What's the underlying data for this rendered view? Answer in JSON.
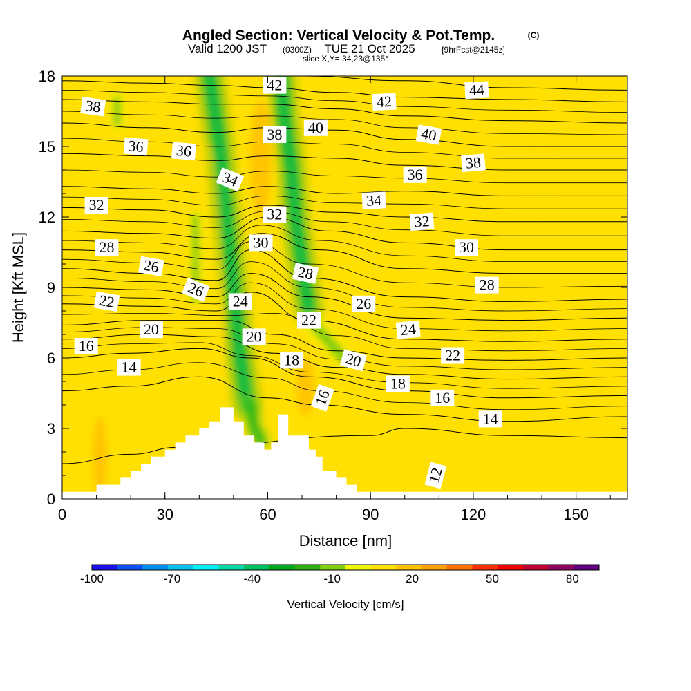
{
  "chart_data": {
    "type": "heatmap",
    "title": "Angled Section: Vertical Velocity & Pot.Temp.",
    "copyright_mark": "(C)",
    "subtitle_valid": "Valid 1200 JST",
    "subtitle_utc": "(0300Z)",
    "subtitle_date": "TUE 21 Oct 2025",
    "subtitle_fcst": "[9hrFcst@2145z]",
    "slice_label": "slice X,Y= 34,23@135°",
    "xlabel": "Distance [nm]",
    "ylabel": "Height [Kft MSL]",
    "xlim": [
      0,
      165
    ],
    "ylim": [
      0,
      18
    ],
    "x_ticks": [
      0,
      30,
      60,
      90,
      120,
      150
    ],
    "y_ticks": [
      0,
      3,
      6,
      9,
      12,
      15,
      18
    ],
    "colorbar": {
      "label": "Vertical Velocity [cm/s]",
      "range": [
        -100,
        90
      ],
      "step": 10,
      "tick_values": [
        -100,
        -70,
        -40,
        -10,
        20,
        50,
        80
      ],
      "colors": [
        "#1a10ee",
        "#0a50f5",
        "#0090f0",
        "#00c0f5",
        "#00f0f5",
        "#00d8a8",
        "#00c060",
        "#00a820",
        "#30b010",
        "#80d010",
        "#f0f800",
        "#ffe000",
        "#ffc000",
        "#ffa000",
        "#ff7000",
        "#ff3000",
        "#f00000",
        "#c00030",
        "#900060",
        "#600080"
      ]
    },
    "terrain_profile": {
      "x": [
        0,
        10,
        10,
        17,
        17,
        20,
        20,
        23,
        23,
        26,
        26,
        30,
        30,
        33,
        33,
        36,
        36,
        40,
        40,
        43,
        43,
        46,
        46,
        50,
        50,
        53,
        53,
        56,
        56,
        59,
        59,
        61,
        61,
        63,
        63,
        66,
        66,
        72,
        72,
        74,
        74,
        76,
        76,
        80,
        80,
        83,
        83,
        86,
        86,
        165
      ],
      "height_kft": [
        0.3,
        0.3,
        0.6,
        0.6,
        0.9,
        0.9,
        1.2,
        1.2,
        1.5,
        1.5,
        1.8,
        1.8,
        2.1,
        2.1,
        2.4,
        2.4,
        2.7,
        2.7,
        3.0,
        3.0,
        3.3,
        3.3,
        3.9,
        3.9,
        3.3,
        3.3,
        2.7,
        2.7,
        2.4,
        2.4,
        2.1,
        2.1,
        2.4,
        2.4,
        3.6,
        3.6,
        2.7,
        2.7,
        2.1,
        2.1,
        1.8,
        1.8,
        1.2,
        1.2,
        0.9,
        0.9,
        0.6,
        0.6,
        0.3,
        0.3
      ]
    },
    "updraft_cores": [
      {
        "x": 11,
        "y": 1.8,
        "w": 4,
        "h": 3.4,
        "value": 20
      },
      {
        "x": 25,
        "y": 5.5,
        "w": 6,
        "h": 9,
        "value": 15
      },
      {
        "x": 42,
        "y": 9,
        "w": 8,
        "h": 12,
        "value": 15
      },
      {
        "x": 58,
        "y": 14.5,
        "w": 6,
        "h": 5,
        "value": 20
      },
      {
        "x": 71,
        "y": 4.8,
        "w": 5,
        "h": 2.5,
        "value": 25
      },
      {
        "x": 100,
        "y": 1.8,
        "w": 14,
        "h": 1.5,
        "value": 15
      },
      {
        "x": 150,
        "y": 1.8,
        "w": 8,
        "h": 1.5,
        "value": 15
      },
      {
        "x": 140,
        "y": 14,
        "w": 10,
        "h": 4,
        "value": 12
      }
    ],
    "downdraft_cores": [
      {
        "path_x": [
          43,
          46,
          48,
          50,
          52,
          54
        ],
        "path_y": [
          18,
          15,
          12,
          9,
          6,
          4
        ],
        "width_nm": 4,
        "value": -35
      },
      {
        "path_x": [
          64,
          65,
          67,
          68,
          70,
          72
        ],
        "path_y": [
          18,
          16,
          14,
          12,
          10,
          8
        ],
        "width_nm": 4,
        "value": -40
      },
      {
        "path_x": [
          55,
          56,
          58
        ],
        "path_y": [
          4,
          3,
          2.5
        ],
        "width_nm": 3,
        "value": -30
      },
      {
        "path_x": [
          73,
          76,
          79,
          82
        ],
        "path_y": [
          7.5,
          7,
          6.5,
          6
        ],
        "width_nm": 3,
        "value": -20
      },
      {
        "path_x": [
          16,
          16
        ],
        "path_y": [
          17,
          16
        ],
        "width_nm": 2,
        "value": -15
      },
      {
        "path_x": [
          39,
          39
        ],
        "path_y": [
          12,
          8.5
        ],
        "width_nm": 2,
        "value": -15
      }
    ],
    "theta_contours": [
      {
        "value": 12,
        "y0": 2.7,
        "pts": [
          [
            0,
            1.5
          ],
          [
            20,
            1.9
          ],
          [
            34,
            2.2
          ],
          [
            90,
            2.7
          ],
          [
            100,
            3.0
          ],
          [
            130,
            2.7
          ],
          [
            165,
            2.6
          ]
        ]
      },
      {
        "value": 14,
        "y0": 4.0,
        "pts": [
          [
            0,
            4.6
          ],
          [
            20,
            4.8
          ],
          [
            40,
            5.2
          ],
          [
            60,
            4.3
          ],
          [
            75,
            4.0
          ],
          [
            100,
            3.6
          ],
          [
            130,
            3.3
          ],
          [
            165,
            3.5
          ]
        ]
      },
      {
        "value": 16,
        "y0": 5.0,
        "pts": [
          [
            0,
            6.0
          ],
          [
            20,
            6.2
          ],
          [
            40,
            6.4
          ],
          [
            55,
            6.0
          ],
          [
            72,
            5.2
          ],
          [
            100,
            4.6
          ],
          [
            130,
            4.3
          ],
          [
            165,
            4.4
          ]
        ]
      },
      {
        "value": 18,
        "y0": 6.0,
        "pts": [
          [
            0,
            6.8
          ],
          [
            25,
            7.0
          ],
          [
            45,
            6.9
          ],
          [
            62,
            6.2
          ],
          [
            80,
            5.6
          ],
          [
            100,
            5.3
          ],
          [
            130,
            5.1
          ],
          [
            165,
            5.2
          ]
        ]
      },
      {
        "value": 20,
        "y0": 7.0,
        "pts": [
          [
            0,
            7.4
          ],
          [
            25,
            7.6
          ],
          [
            48,
            7.6
          ],
          [
            62,
            7.0
          ],
          [
            80,
            6.3
          ],
          [
            100,
            6.0
          ],
          [
            130,
            5.9
          ],
          [
            165,
            6.0
          ]
        ]
      },
      {
        "value": 22,
        "y0": 7.8,
        "pts": [
          [
            0,
            8.3
          ],
          [
            25,
            8.2
          ],
          [
            45,
            8.0
          ],
          [
            55,
            8.8
          ],
          [
            72,
            7.6
          ],
          [
            100,
            6.8
          ],
          [
            130,
            6.7
          ],
          [
            165,
            6.8
          ]
        ]
      },
      {
        "value": 24,
        "y0": 8.4,
        "pts": [
          [
            0,
            9.0
          ],
          [
            25,
            8.9
          ],
          [
            45,
            8.6
          ],
          [
            55,
            9.6
          ],
          [
            72,
            8.6
          ],
          [
            100,
            7.7
          ],
          [
            130,
            7.6
          ],
          [
            165,
            7.7
          ]
        ]
      },
      {
        "value": 26,
        "y0": 9.0,
        "pts": [
          [
            0,
            9.8
          ],
          [
            25,
            9.6
          ],
          [
            45,
            9.3
          ],
          [
            55,
            10.6
          ],
          [
            72,
            9.4
          ],
          [
            100,
            8.6
          ],
          [
            130,
            8.4
          ],
          [
            165,
            8.5
          ]
        ]
      },
      {
        "value": 28,
        "y0": 9.8,
        "pts": [
          [
            0,
            10.6
          ],
          [
            25,
            10.5
          ],
          [
            45,
            10.2
          ],
          [
            58,
            11.3
          ],
          [
            75,
            10.6
          ],
          [
            100,
            9.8
          ],
          [
            130,
            9.6
          ],
          [
            165,
            9.6
          ]
        ]
      },
      {
        "value": 30,
        "y0": 10.6,
        "pts": [
          [
            0,
            11.4
          ],
          [
            25,
            11.3
          ],
          [
            45,
            11.1
          ],
          [
            60,
            12.0
          ],
          [
            78,
            11.4
          ],
          [
            100,
            10.9
          ],
          [
            130,
            10.6
          ],
          [
            165,
            10.6
          ]
        ]
      },
      {
        "value": 32,
        "y0": 11.6,
        "pts": [
          [
            0,
            12.4
          ],
          [
            25,
            12.3
          ],
          [
            45,
            12.0
          ],
          [
            60,
            12.5
          ],
          [
            80,
            12.2
          ],
          [
            100,
            12.0
          ],
          [
            130,
            11.8
          ],
          [
            165,
            11.8
          ]
        ]
      },
      {
        "value": 34,
        "y0": 12.6,
        "pts": [
          [
            0,
            13.3
          ],
          [
            25,
            13.2
          ],
          [
            45,
            13.0
          ],
          [
            60,
            13.3
          ],
          [
            80,
            13.0
          ],
          [
            100,
            13.1
          ],
          [
            130,
            12.9
          ],
          [
            165,
            12.9
          ]
        ]
      },
      {
        "value": 36,
        "y0": 13.8,
        "pts": [
          [
            0,
            14.7
          ],
          [
            25,
            14.6
          ],
          [
            45,
            14.4
          ],
          [
            60,
            14.6
          ],
          [
            80,
            14.5
          ],
          [
            100,
            14.2
          ],
          [
            130,
            14.0
          ],
          [
            165,
            14.0
          ]
        ]
      },
      {
        "value": 38,
        "y0": 15.2,
        "pts": [
          [
            0,
            16.0
          ],
          [
            25,
            15.8
          ],
          [
            45,
            15.6
          ],
          [
            60,
            15.8
          ],
          [
            80,
            15.7
          ],
          [
            100,
            15.3
          ],
          [
            130,
            15.0
          ],
          [
            165,
            15.0
          ]
        ]
      },
      {
        "value": 40,
        "y0": 16.4,
        "pts": [
          [
            0,
            17.0
          ],
          [
            25,
            16.9
          ],
          [
            45,
            16.8
          ],
          [
            60,
            16.8
          ],
          [
            80,
            16.6
          ],
          [
            100,
            16.3
          ],
          [
            130,
            16.1
          ],
          [
            165,
            16.0
          ]
        ]
      },
      {
        "value": 42,
        "y0": 17.2,
        "pts": [
          [
            0,
            17.8
          ],
          [
            25,
            17.7
          ],
          [
            45,
            17.6
          ],
          [
            60,
            17.5
          ],
          [
            80,
            17.3
          ],
          [
            100,
            17.1
          ],
          [
            130,
            17.0
          ],
          [
            165,
            16.9
          ]
        ]
      },
      {
        "value": 44,
        "y0": 17.8,
        "pts": [
          [
            70,
            18.0
          ],
          [
            100,
            17.8
          ],
          [
            130,
            17.5
          ],
          [
            165,
            17.4
          ]
        ]
      }
    ],
    "contour_labels": [
      {
        "text": "38",
        "x": 9,
        "y": 16.7,
        "rot": 8
      },
      {
        "text": "36",
        "x": 21.5,
        "y": 15.0,
        "rot": 5
      },
      {
        "text": "36",
        "x": 35.5,
        "y": 14.8,
        "rot": 5
      },
      {
        "text": "42",
        "x": 62,
        "y": 17.6,
        "rot": 0
      },
      {
        "text": "42",
        "x": 94,
        "y": 16.9,
        "rot": -3
      },
      {
        "text": "44",
        "x": 121,
        "y": 17.4,
        "rot": -3
      },
      {
        "text": "38",
        "x": 62,
        "y": 15.5,
        "rot": 0
      },
      {
        "text": "40",
        "x": 74,
        "y": 15.8,
        "rot": 0
      },
      {
        "text": "40",
        "x": 107,
        "y": 15.5,
        "rot": 10
      },
      {
        "text": "38",
        "x": 120,
        "y": 14.3,
        "rot": -5
      },
      {
        "text": "34",
        "x": 49,
        "y": 13.6,
        "rot": 22
      },
      {
        "text": "36",
        "x": 103,
        "y": 13.8,
        "rot": 0
      },
      {
        "text": "32",
        "x": 10,
        "y": 12.5,
        "rot": 0
      },
      {
        "text": "32",
        "x": 62,
        "y": 12.1,
        "rot": 0
      },
      {
        "text": "34",
        "x": 91,
        "y": 12.7,
        "rot": -3
      },
      {
        "text": "32",
        "x": 105,
        "y": 11.8,
        "rot": -4
      },
      {
        "text": "30",
        "x": 58,
        "y": 10.9,
        "rot": 0
      },
      {
        "text": "30",
        "x": 118,
        "y": 10.7,
        "rot": 0
      },
      {
        "text": "28",
        "x": 13,
        "y": 10.7,
        "rot": 0
      },
      {
        "text": "26",
        "x": 26,
        "y": 9.9,
        "rot": 10
      },
      {
        "text": "28",
        "x": 71,
        "y": 9.6,
        "rot": 12
      },
      {
        "text": "28",
        "x": 124,
        "y": 9.1,
        "rot": 0
      },
      {
        "text": "26",
        "x": 39,
        "y": 8.9,
        "rot": 22
      },
      {
        "text": "22",
        "x": 13,
        "y": 8.4,
        "rot": 10
      },
      {
        "text": "24",
        "x": 52,
        "y": 8.4,
        "rot": 0
      },
      {
        "text": "26",
        "x": 88,
        "y": 8.3,
        "rot": 0
      },
      {
        "text": "22",
        "x": 72,
        "y": 7.6,
        "rot": 0
      },
      {
        "text": "24",
        "x": 101,
        "y": 7.2,
        "rot": -5
      },
      {
        "text": "20",
        "x": 26,
        "y": 7.2,
        "rot": 0
      },
      {
        "text": "20",
        "x": 56,
        "y": 6.9,
        "rot": 0
      },
      {
        "text": "16",
        "x": 7,
        "y": 6.5,
        "rot": 0
      },
      {
        "text": "14",
        "x": 19.5,
        "y": 5.6,
        "rot": 0
      },
      {
        "text": "18",
        "x": 67,
        "y": 5.9,
        "rot": 0
      },
      {
        "text": "20",
        "x": 85,
        "y": 5.9,
        "rot": 15
      },
      {
        "text": "22",
        "x": 114,
        "y": 6.1,
        "rot": 0
      },
      {
        "text": "18",
        "x": 98,
        "y": 4.9,
        "rot": 0
      },
      {
        "text": "16",
        "x": 76,
        "y": 4.3,
        "rot": -70
      },
      {
        "text": "16",
        "x": 111,
        "y": 4.3,
        "rot": 0
      },
      {
        "text": "14",
        "x": 125,
        "y": 3.4,
        "rot": 0
      },
      {
        "text": "12",
        "x": 109,
        "y": 1.0,
        "rot": -75
      }
    ]
  }
}
